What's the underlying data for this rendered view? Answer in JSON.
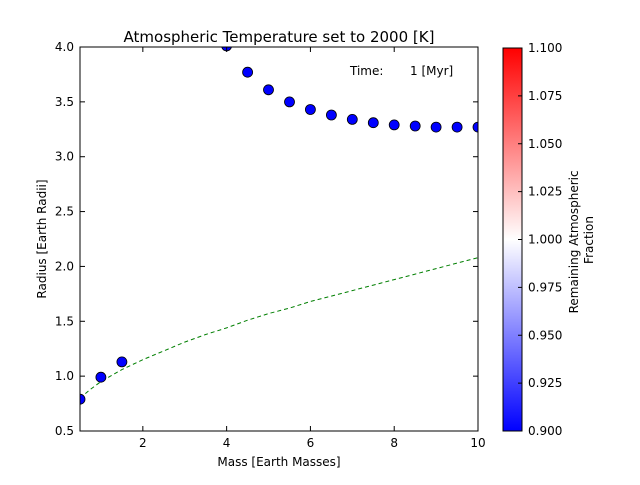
{
  "chart_data": {
    "type": "scatter",
    "title": "Atmospheric Temperature set to 2000 [K]",
    "xlabel": "Mass [Earth Masses]",
    "ylabel": "Radius [Earth Radii]",
    "xlim": [
      0.5,
      10
    ],
    "ylim": [
      0.5,
      4.0
    ],
    "xticks": [
      2,
      4,
      6,
      8,
      10
    ],
    "yticks": [
      0.5,
      1.0,
      1.5,
      2.0,
      2.5,
      3.0,
      3.5,
      4.0
    ],
    "grid": false,
    "annotation": {
      "label": "Time:",
      "value": "1 [Myr]"
    },
    "series": [
      {
        "marker": "circle",
        "color": "#0000ff",
        "x": [
          0.5,
          1.0,
          1.5,
          4.0,
          4.5,
          5.0,
          5.5,
          6.0,
          6.5,
          7.0,
          7.5,
          8.0,
          8.5,
          9.0,
          9.5,
          10.0
        ],
        "y": [
          0.79,
          0.99,
          1.13,
          4.01,
          3.77,
          3.61,
          3.5,
          3.43,
          3.38,
          3.34,
          3.31,
          3.29,
          3.28,
          3.27,
          3.27,
          3.27
        ]
      },
      {
        "line_style": "dashed",
        "color": "#007f00",
        "x": [
          0.5,
          0.75,
          1.0,
          1.5,
          2.0,
          2.5,
          3.0,
          3.5,
          4.0,
          4.5,
          5.0,
          5.5,
          6.0,
          6.5,
          7.0,
          7.5,
          8.0,
          8.5,
          9.0,
          9.5,
          10.0
        ],
        "y": [
          0.8,
          0.88,
          0.95,
          1.06,
          1.15,
          1.23,
          1.31,
          1.38,
          1.44,
          1.51,
          1.57,
          1.62,
          1.68,
          1.73,
          1.78,
          1.83,
          1.88,
          1.93,
          1.98,
          2.03,
          2.08
        ]
      }
    ],
    "colorbar": {
      "label_line1": "Remaining Atmospheric",
      "label_line2": "Fraction",
      "min": 0.9,
      "max": 1.1,
      "colors": [
        "#0000ff",
        "#ffffff",
        "#ff0000"
      ],
      "ticks": [
        "0.900",
        "0.925",
        "0.950",
        "0.975",
        "1.000",
        "1.025",
        "1.050",
        "1.075",
        "1.100"
      ]
    }
  }
}
